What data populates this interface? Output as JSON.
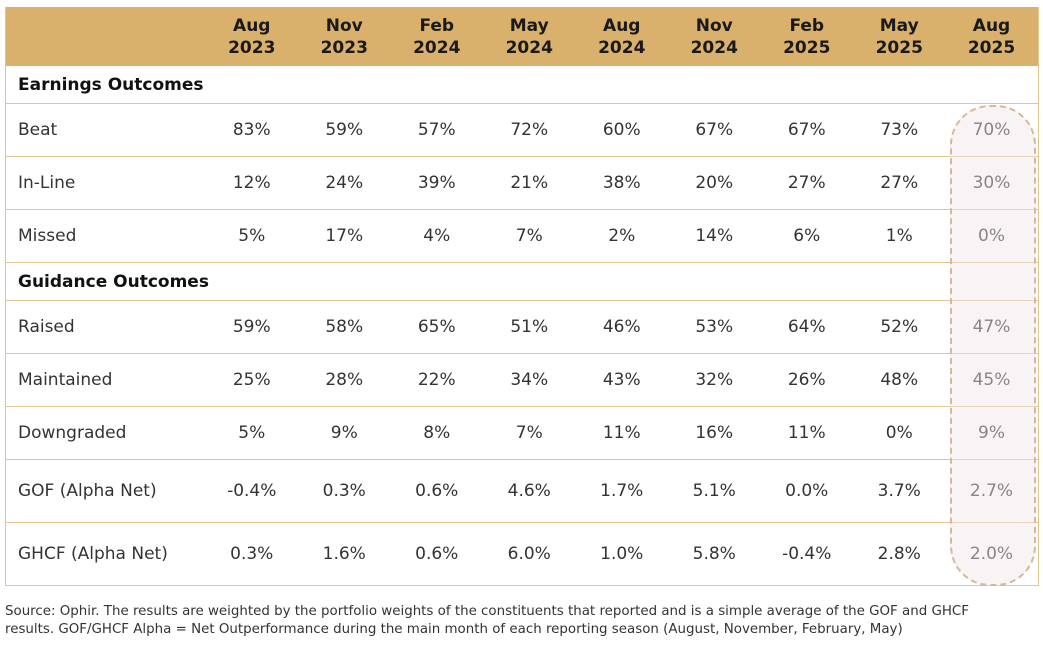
{
  "chart_data": {
    "type": "table",
    "columns": [
      {
        "month": "Aug",
        "year": "2023"
      },
      {
        "month": "Nov",
        "year": "2023"
      },
      {
        "month": "Feb",
        "year": "2024"
      },
      {
        "month": "May",
        "year": "2024"
      },
      {
        "month": "Aug",
        "year": "2024"
      },
      {
        "month": "Nov",
        "year": "2024"
      },
      {
        "month": "Feb",
        "year": "2025"
      },
      {
        "month": "May",
        "year": "2025"
      },
      {
        "month": "Aug",
        "year": "2025"
      }
    ],
    "sections": [
      {
        "title": "Earnings Outcomes",
        "rows": [
          {
            "label": "Beat",
            "values": [
              "83%",
              "59%",
              "57%",
              "72%",
              "60%",
              "67%",
              "67%",
              "73%",
              "70%"
            ]
          },
          {
            "label": "In-Line",
            "values": [
              "12%",
              "24%",
              "39%",
              "21%",
              "38%",
              "20%",
              "27%",
              "27%",
              "30%"
            ]
          },
          {
            "label": "Missed",
            "values": [
              "5%",
              "17%",
              "4%",
              "7%",
              "2%",
              "14%",
              "6%",
              "1%",
              "0%"
            ]
          }
        ]
      },
      {
        "title": "Guidance Outcomes",
        "rows": [
          {
            "label": "Raised",
            "values": [
              "59%",
              "58%",
              "65%",
              "51%",
              "46%",
              "53%",
              "64%",
              "52%",
              "47%"
            ]
          },
          {
            "label": "Maintained",
            "values": [
              "25%",
              "28%",
              "22%",
              "34%",
              "43%",
              "32%",
              "26%",
              "48%",
              "45%"
            ]
          },
          {
            "label": "Downgraded",
            "values": [
              "5%",
              "9%",
              "8%",
              "7%",
              "11%",
              "16%",
              "11%",
              "0%",
              "9%"
            ]
          }
        ]
      }
    ],
    "alpha_rows": [
      {
        "label": "GOF (Alpha Net)",
        "values": [
          "-0.4%",
          "0.3%",
          "0.6%",
          "4.6%",
          "1.7%",
          "5.1%",
          "0.0%",
          "3.7%",
          "2.7%"
        ]
      },
      {
        "label": "GHCF (Alpha Net)",
        "values": [
          "0.3%",
          "1.6%",
          "0.6%",
          "6.0%",
          "1.0%",
          "5.8%",
          "-0.4%",
          "2.8%",
          "2.0%"
        ]
      }
    ],
    "highlighted_column": "Aug 2025"
  },
  "colors": {
    "header_bg": "#d9b06c",
    "row_border": "#e2c58f",
    "highlight_border": "#d8b896"
  },
  "footnote": {
    "line1": "Source: Ophir. The results are weighted by the portfolio weights of the constituents that reported and is a simple average of the GOF and GHCF",
    "line2": "results. GOF/GHCF Alpha = Net Outperformance during the main month of each reporting season (August, November, February, May)"
  }
}
